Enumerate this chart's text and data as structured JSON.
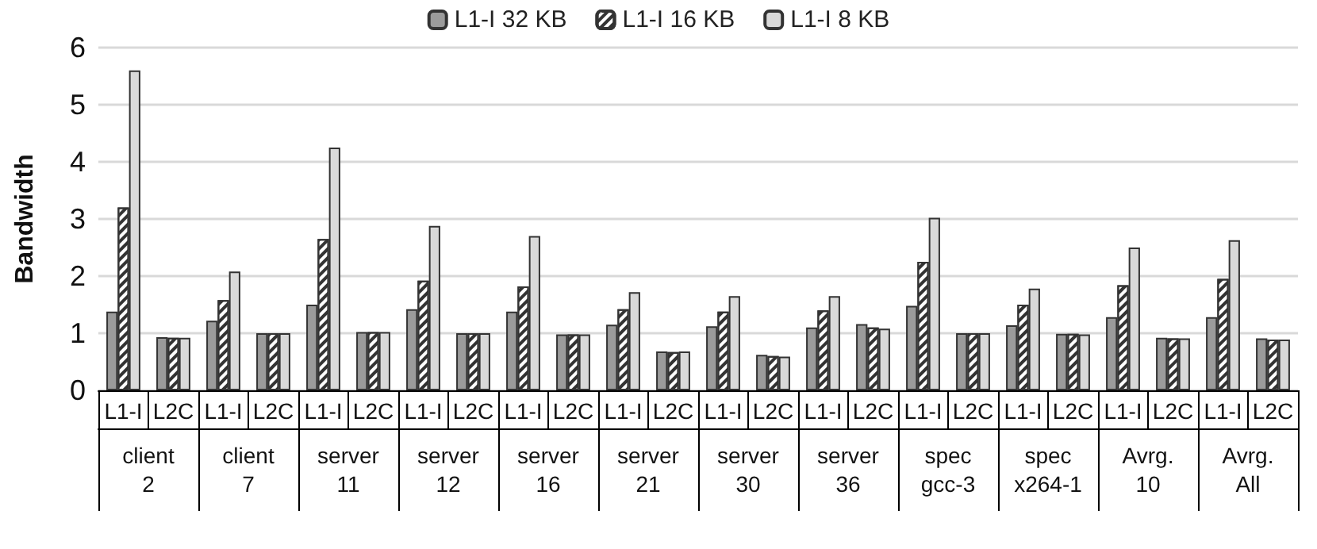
{
  "chart_data": {
    "type": "bar",
    "ylabel": "Bandwidth",
    "categories": [
      "L1-I",
      "L2C",
      "L1-I",
      "L2C",
      "L1-I",
      "L2C",
      "L1-I",
      "L2C",
      "L1-I",
      "L2C",
      "L1-I",
      "L2C",
      "L1-I",
      "L2C",
      "L1-I",
      "L2C",
      "L1-I",
      "L2C",
      "L1-I",
      "L2C",
      "L1-I",
      "L2C",
      "L1-I",
      "L2C"
    ],
    "annotations": [
      "client 2",
      "client 7",
      "server 11",
      "server 12",
      "server 16",
      "server 21",
      "server 30",
      "server 36",
      "spec gcc-3",
      "spec x264-1",
      "Avrg. 10",
      "Avrg. All"
    ],
    "series": [
      {
        "name": "L1-I 32 KB",
        "color": "#9b9b9b",
        "values": [
          1.38,
          0.93,
          1.22,
          1.0,
          1.5,
          1.02,
          1.42,
          1.0,
          1.38,
          0.98,
          1.15,
          0.68,
          1.12,
          0.62,
          1.1,
          1.16,
          1.48,
          1.0,
          1.14,
          0.99,
          1.28,
          0.92,
          1.28,
          0.91
        ]
      },
      {
        "name": "L1-I 16 KB",
        "color": "#ffffff",
        "values": [
          3.2,
          0.92,
          1.58,
          1.0,
          2.65,
          1.02,
          1.92,
          1.0,
          1.82,
          0.98,
          1.42,
          0.67,
          1.38,
          0.6,
          1.4,
          1.1,
          2.25,
          1.0,
          1.5,
          0.99,
          1.84,
          0.91,
          1.95,
          0.89
        ]
      },
      {
        "name": "L1-I 8 KB",
        "color": "#d9d9d9",
        "values": [
          5.6,
          0.92,
          2.08,
          1.0,
          4.25,
          1.02,
          2.88,
          1.0,
          2.7,
          0.98,
          1.72,
          0.68,
          1.65,
          0.59,
          1.65,
          1.08,
          3.02,
          1.0,
          1.78,
          0.98,
          2.5,
          0.91,
          2.63,
          0.89
        ]
      }
    ],
    "ylim": [
      0,
      6
    ],
    "yticks": [
      0,
      1,
      2,
      3,
      4,
      5,
      6
    ],
    "grid": "y",
    "legend": "top"
  }
}
